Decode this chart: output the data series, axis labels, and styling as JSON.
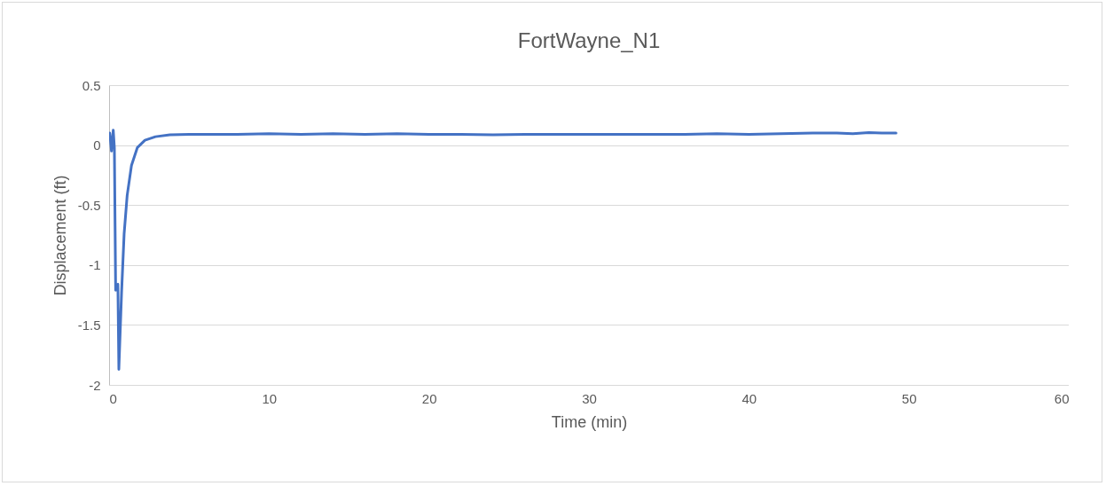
{
  "chart_data": {
    "type": "line",
    "title": "FortWayne_N1",
    "xlabel": "Time (min)",
    "ylabel": "Displacement (ft)",
    "xlim": [
      0,
      60
    ],
    "xticks": [
      0,
      10,
      20,
      30,
      40,
      50,
      60
    ],
    "ylim": [
      -2,
      0.5
    ],
    "yticks": [
      -2,
      -1.5,
      -1,
      -0.5,
      0,
      0.5
    ],
    "grid": "y",
    "series": [
      {
        "color": "#4472c4",
        "x": [
          0.04,
          0.15,
          0.26,
          0.33,
          0.41,
          0.55,
          0.61,
          0.78,
          0.94,
          1.13,
          1.4,
          1.77,
          2.24,
          2.9,
          3.8,
          5,
          6.2,
          8,
          10,
          12,
          14,
          16,
          18,
          20,
          22,
          24,
          26,
          28,
          30,
          32,
          34,
          36,
          38,
          40,
          42,
          44,
          45.5,
          46.5,
          47.5,
          48.3,
          49.2
        ],
        "values": [
          0.1,
          -0.05,
          0.125,
          -0.02,
          -1.21,
          -1.16,
          -1.87,
          -1.23,
          -0.74,
          -0.42,
          -0.17,
          -0.02,
          0.04,
          0.07,
          0.085,
          0.09,
          0.09,
          0.09,
          0.095,
          0.09,
          0.095,
          0.09,
          0.095,
          0.09,
          0.09,
          0.085,
          0.09,
          0.09,
          0.09,
          0.09,
          0.09,
          0.09,
          0.095,
          0.09,
          0.095,
          0.1,
          0.1,
          0.095,
          0.105,
          0.1,
          0.1
        ]
      }
    ]
  }
}
